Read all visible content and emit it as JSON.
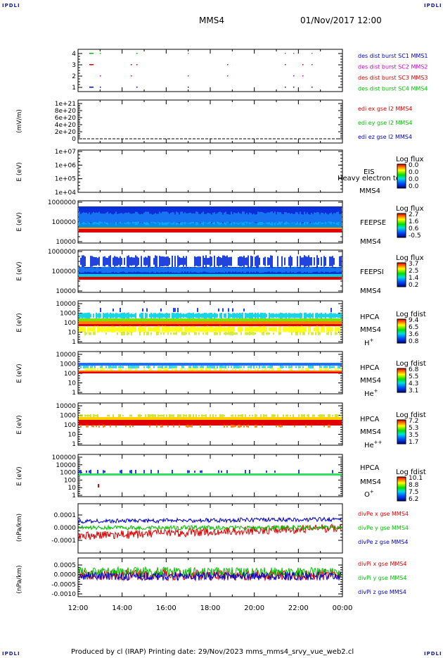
{
  "corners": {
    "tl": "IPDLI",
    "tr": "IPDLI",
    "bl": "IPDLI",
    "br": "IPDLI"
  },
  "header": {
    "spacecraft": "MMS4",
    "datetime": "01/Nov/2017 12:00"
  },
  "footer": {
    "text": "Produced by cl (IRAP)   Printing date: 29/Nov/2023   mms_mms4_srvy_vue_web2.cl"
  },
  "x_axis": {
    "ticks": [
      "12:00",
      "14:00",
      "16:00",
      "18:00",
      "20:00",
      "22:00",
      "00:00"
    ]
  },
  "colors": {
    "red": "#e00000",
    "green": "#00c000",
    "blue": "#0000cc",
    "magenta": "#cc00cc"
  },
  "chart_data": [
    {
      "id": "burst",
      "type": "scatter",
      "ylabel": "",
      "yticks": [
        "4",
        "3",
        "2",
        "1"
      ],
      "legend": [
        {
          "name": "des dist burst SC1 MMS1",
          "color": "#0000cc"
        },
        {
          "name": "des dist burst SC2 MMS2",
          "color": "#cc00cc"
        },
        {
          "name": "des dist burst SC3 MMS3",
          "color": "#e00000"
        },
        {
          "name": "des dist burst SC4 MMS4",
          "color": "#00c000"
        }
      ]
    },
    {
      "id": "edi",
      "type": "line",
      "ylabel": "(mV/m)",
      "yticks": [
        "1e+21",
        "8e+20",
        "6e+20",
        "4e+20",
        "2e+20",
        "0"
      ],
      "legend": [
        {
          "name": "edi ex gse l2 MMS4",
          "color": "#e00000"
        },
        {
          "name": "edi ey gse l2 MMS4",
          "color": "#00c000"
        },
        {
          "name": "edi ez gse l2 MMS4",
          "color": "#0000cc"
        }
      ]
    },
    {
      "id": "eis",
      "type": "heatmap",
      "ylabel": "E (eV)",
      "yticks": [
        "1e+07",
        "1e+06",
        "1e+05",
        "1e+04"
      ],
      "labels": [
        "EIS",
        "MMS4"
      ],
      "extra_label": "Heavy electron to",
      "cbar_title": "Log flux",
      "cbar_ticks": [
        "0.0",
        "0.0",
        "0.0",
        "0.0"
      ]
    },
    {
      "id": "feepse",
      "type": "heatmap",
      "ylabel": "E (eV)",
      "yticks": [
        "1000000",
        "100000",
        "10000"
      ],
      "labels": [
        "FEEPSE",
        "MMS4"
      ],
      "cbar_title": "Log flux",
      "cbar_ticks": [
        "2.7",
        "1.6",
        "0.6",
        "-0.5"
      ]
    },
    {
      "id": "feepsi",
      "type": "heatmap",
      "ylabel": "E (eV)",
      "yticks": [
        "1000000",
        "100000",
        "10000"
      ],
      "labels": [
        "FEEPSI",
        "MMS4"
      ],
      "cbar_title": "Log flux",
      "cbar_ticks": [
        "3.7",
        "2.5",
        "1.4",
        "0.2"
      ]
    },
    {
      "id": "hpca_h",
      "type": "heatmap",
      "ylabel": "E (eV)",
      "yticks": [
        "10000",
        "1000",
        "100",
        "10",
        "1"
      ],
      "labels": [
        "HPCA",
        "MMS4"
      ],
      "species": "H",
      "species_sup": "+",
      "cbar_title": "Log fdist",
      "cbar_ticks": [
        "9.4",
        "6.5",
        "3.6",
        "0.8"
      ]
    },
    {
      "id": "hpca_he",
      "type": "heatmap",
      "ylabel": "E (eV)",
      "yticks": [
        "10000",
        "1000",
        "100",
        "10",
        "1"
      ],
      "labels": [
        "HPCA",
        "MMS4"
      ],
      "species": "He",
      "species_sup": "+",
      "cbar_title": "Log fdist",
      "cbar_ticks": [
        "6.8",
        "5.5",
        "4.3",
        "3.1"
      ]
    },
    {
      "id": "hpca_hepp",
      "type": "heatmap",
      "ylabel": "E (eV)",
      "yticks": [
        "10000",
        "1000",
        "100",
        "10",
        "1"
      ],
      "labels": [
        "HPCA",
        "MMS4"
      ],
      "species": "He",
      "species_sup": "++",
      "cbar_title": "Log fdist",
      "cbar_ticks": [
        "7.2",
        "5.3",
        "3.5",
        "1.7"
      ]
    },
    {
      "id": "hpca_o",
      "type": "heatmap",
      "ylabel": "E (eV)",
      "yticks": [
        "100000",
        "10000",
        "1000",
        "100",
        "10",
        "1"
      ],
      "labels": [
        "HPCA",
        "MMS4"
      ],
      "species": "O",
      "species_sup": "+",
      "cbar_title": "Log fdist",
      "cbar_ticks": [
        "10.1",
        "8.8",
        "7.5",
        "6.2"
      ]
    },
    {
      "id": "divpe",
      "type": "line",
      "ylabel": "(nPa/km)",
      "yticks": [
        "0.0001",
        "0.0000",
        "-0.0001"
      ],
      "legend": [
        {
          "name": "divPe x gse MMS4",
          "color": "#e00000"
        },
        {
          "name": "divPe y gse MMS4",
          "color": "#00c000"
        },
        {
          "name": "divPe z gse MMS4",
          "color": "#0000cc"
        }
      ]
    },
    {
      "id": "divpi",
      "type": "line",
      "ylabel": "(nPa/km)",
      "yticks": [
        "0.0005",
        "0.0000",
        "-0.0005",
        "-0.0010"
      ],
      "legend": [
        {
          "name": "divPi x gse MMS4",
          "color": "#e00000"
        },
        {
          "name": "divPi y gse MMS4",
          "color": "#00c000"
        },
        {
          "name": "divPi z gse MMS4",
          "color": "#0000cc"
        }
      ]
    }
  ]
}
